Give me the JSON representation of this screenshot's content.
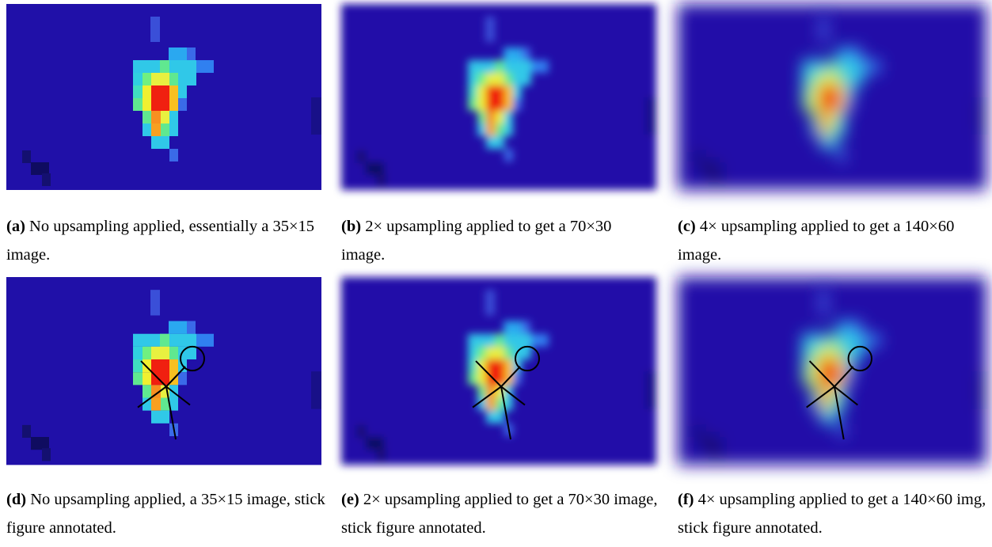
{
  "figure": {
    "panels": [
      {
        "label": "(a)",
        "caption": "No upsampling applied, essentially a 35×15 image."
      },
      {
        "label": "(b)",
        "caption": "2× upsampling applied to get a 70×30 image."
      },
      {
        "label": "(c)",
        "caption": "4× upsampling applied to get a 140×60 image."
      },
      {
        "label": "(d)",
        "caption": "No upsampling applied, a 35×15 image, stick figure annotated."
      },
      {
        "label": "(e)",
        "caption": "2× upsampling applied to get a 70×30 image, stick figure annotated."
      },
      {
        "label": "(f)",
        "caption": "4× upsampling applied to get a 140×60 img, stick figure annotated."
      }
    ]
  }
}
